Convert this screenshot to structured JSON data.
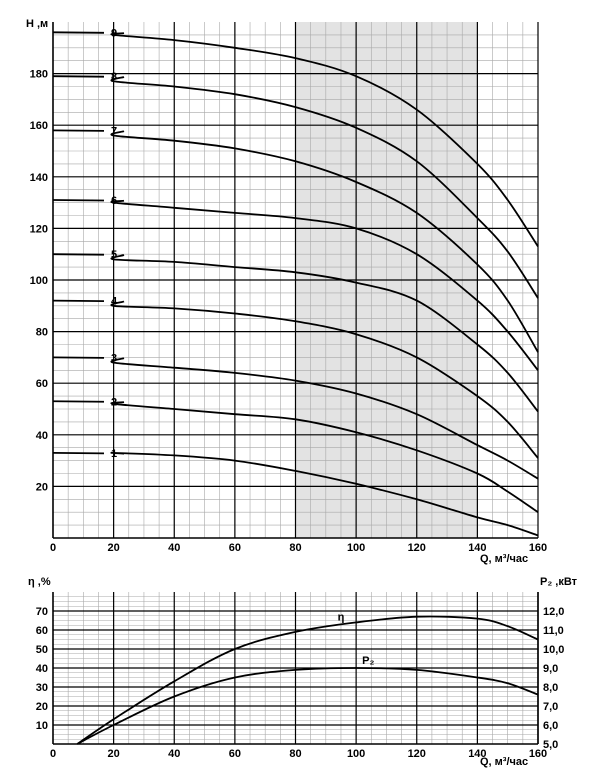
{
  "chart_data": [
    {
      "type": "line",
      "ylabel": "H ,м",
      "xlabel": "Q, м³/час",
      "xlim": [
        0,
        160
      ],
      "ylim": [
        0,
        200
      ],
      "x_ticks": [
        "0",
        "20",
        "40",
        "60",
        "80",
        "100",
        "120",
        "140",
        "160"
      ],
      "y_ticks": [
        "20",
        "40",
        "60",
        "80",
        "100",
        "120",
        "140",
        "160",
        "180"
      ],
      "grid": true,
      "shaded_range": [
        80,
        140
      ],
      "shade_color": "#e3e3e3",
      "x": [
        0,
        20,
        40,
        60,
        80,
        100,
        120,
        140,
        150,
        160
      ],
      "series": [
        {
          "name": "1",
          "values": [
            33,
            33,
            32,
            30,
            26,
            21,
            15,
            8,
            5,
            1
          ]
        },
        {
          "name": "2",
          "values": [
            53,
            52,
            50,
            48,
            46,
            41,
            34,
            25,
            18,
            10
          ]
        },
        {
          "name": "3",
          "values": [
            70,
            68,
            66,
            64,
            61,
            56,
            48,
            36,
            30,
            23
          ]
        },
        {
          "name": "4",
          "values": [
            92,
            90,
            89,
            87,
            84,
            79,
            70,
            55,
            45,
            31
          ]
        },
        {
          "name": "5",
          "values": [
            110,
            108,
            107,
            105,
            103,
            99,
            92,
            75,
            64,
            49
          ]
        },
        {
          "name": "6",
          "values": [
            131,
            130,
            128,
            126,
            124,
            120,
            110,
            92,
            80,
            65
          ]
        },
        {
          "name": "7",
          "values": [
            158,
            156,
            154,
            151,
            146,
            138,
            126,
            106,
            92,
            72
          ]
        },
        {
          "name": "8",
          "values": [
            179,
            177,
            175,
            172,
            167,
            159,
            146,
            124,
            111,
            93
          ]
        },
        {
          "name": "9",
          "values": [
            196,
            195,
            193,
            190,
            186,
            179,
            166,
            145,
            131,
            113
          ]
        }
      ]
    },
    {
      "type": "line",
      "ylabel": "η ,%",
      "ylabel_right": "P₂ ,кВт",
      "xlabel": "Q, м³/час",
      "xlim": [
        0,
        160
      ],
      "ylim": [
        0,
        80
      ],
      "y2lim": [
        5.0,
        13.0
      ],
      "x_ticks": [
        "0",
        "20",
        "40",
        "60",
        "80",
        "100",
        "120",
        "140",
        "160"
      ],
      "y_ticks": [
        "10",
        "20",
        "30",
        "40",
        "50",
        "60",
        "70"
      ],
      "y2_ticks": [
        "5,0",
        "6,0",
        "7,0",
        "8,0",
        "9,0",
        "10,0",
        "11,0",
        "12,0"
      ],
      "grid": true,
      "x": [
        8,
        20,
        40,
        60,
        80,
        100,
        120,
        140,
        150,
        160
      ],
      "series": [
        {
          "name": "η",
          "axis": "left",
          "values": [
            0,
            13,
            33,
            50,
            59,
            64,
            67,
            66,
            62,
            55
          ]
        },
        {
          "name": "P₂",
          "axis": "right",
          "values": [
            5.0,
            6.0,
            7.5,
            8.5,
            8.9,
            9.0,
            8.9,
            8.5,
            8.2,
            7.6
          ]
        }
      ]
    }
  ]
}
